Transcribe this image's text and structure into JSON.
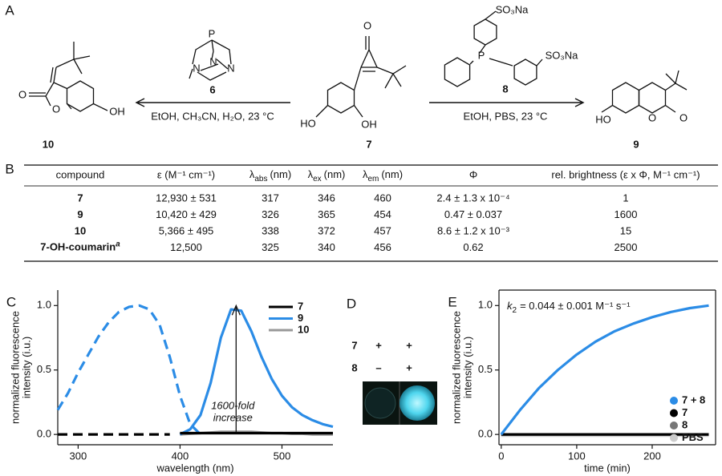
{
  "panel_a": {
    "label": "A",
    "left_reaction": {
      "reagent": "6",
      "conditions": "EtOH, CH₃CN, H₂O, 23 °C"
    },
    "right_reaction": {
      "reagent": "8",
      "conditions": "EtOH, PBS, 23 °C"
    },
    "compounds": {
      "product_left": "10",
      "start": "7",
      "product_right": "9"
    },
    "atoms": {
      "c10": [
        "O",
        "O",
        "OH"
      ],
      "c6": [
        "P",
        "N",
        "N",
        "N"
      ],
      "c7": [
        "O",
        "HO",
        "OH"
      ],
      "c8": [
        "SO₃Na",
        "P",
        "SO₃Na"
      ],
      "c9": [
        "HO",
        "O",
        "O"
      ]
    }
  },
  "panel_b": {
    "label": "B",
    "header": [
      "compound",
      "ε (M⁻¹ cm⁻¹)",
      {
        "symbol": "λ",
        "sub": "abs",
        "unit": "(nm)"
      },
      {
        "symbol": "λ",
        "sub": "ex",
        "unit": "(nm)"
      },
      {
        "symbol": "λ",
        "sub": "em",
        "unit": "(nm)"
      },
      "Φ",
      "rel. brightness (ε x Φ, M⁻¹ cm⁻¹)"
    ],
    "rows": [
      [
        "7",
        "12,930 ± 531",
        "317",
        "346",
        "460",
        "2.4 ± 1.3 x 10⁻⁴",
        "1"
      ],
      [
        "9",
        "10,420 ± 429",
        "326",
        "365",
        "454",
        "0.47 ± 0.037",
        "1600"
      ],
      [
        "10",
        "5,366 ± 495",
        "338",
        "372",
        "457",
        "8.6 ± 1.2 x 10⁻³",
        "15"
      ],
      [
        {
          "text": "7-OH-coumarin",
          "footnote": "a"
        },
        "12,500",
        "325",
        "340",
        "456",
        "0.62",
        "2500"
      ]
    ]
  },
  "panel_d": {
    "label": "D",
    "rows": [
      {
        "compound": "7",
        "signs": [
          "+",
          "+"
        ]
      },
      {
        "compound": "8",
        "signs": [
          "–",
          "+"
        ]
      }
    ]
  },
  "chart_data": [
    {
      "type": "line",
      "panel": "C",
      "xlabel": "wavelength (nm)",
      "ylabel": [
        "normalized fluorescence",
        "intensity (i.u.)"
      ],
      "x": [
        280,
        290,
        300,
        310,
        320,
        330,
        340,
        350,
        360,
        370,
        380,
        390,
        400,
        410,
        420,
        430,
        440,
        450,
        460,
        470,
        480,
        490,
        500,
        510,
        520,
        530,
        540,
        550
      ],
      "xlim": [
        280,
        550
      ],
      "xticks": [
        300,
        400,
        500
      ],
      "ylim": [
        -0.08,
        1.12
      ],
      "yticks": [
        {
          "value": 0,
          "label": "0.0"
        },
        {
          "value": 0.5,
          "label": "0.5"
        },
        {
          "value": 1,
          "label": "1.0"
        }
      ],
      "legend": "upper right",
      "box": false,
      "annotation": [
        "1600-fold",
        "increase"
      ],
      "arrow": {
        "x": 455,
        "from": 0.02,
        "to": 1.0
      },
      "series": [
        {
          "name": "7",
          "color": "#000000",
          "excitation": [
            0,
            0,
            0,
            0,
            0,
            0,
            0,
            0,
            0,
            0,
            0,
            0,
            null,
            null,
            null,
            null,
            null,
            null,
            null,
            null,
            null,
            null,
            null,
            null,
            null,
            null,
            null,
            null
          ],
          "values": [
            null,
            null,
            null,
            null,
            null,
            null,
            null,
            null,
            null,
            null,
            null,
            null,
            0.01,
            0.01,
            0.01,
            0.01,
            0.01,
            0.01,
            0.01,
            0.01,
            0.01,
            0.01,
            0.01,
            0.01,
            0.01,
            0.01,
            0.01,
            0.01
          ]
        },
        {
          "name": "9",
          "color": "#2b8ce6",
          "excitation": [
            0.19,
            0.32,
            0.48,
            0.62,
            0.76,
            0.87,
            0.95,
            0.99,
            1.0,
            0.97,
            0.85,
            0.6,
            0.3,
            0.08,
            0.0,
            null,
            null,
            null,
            null,
            null,
            null,
            null,
            null,
            null,
            null,
            null,
            null,
            null
          ],
          "values": [
            null,
            null,
            null,
            null,
            null,
            null,
            null,
            null,
            null,
            null,
            null,
            null,
            0.0,
            0.04,
            0.15,
            0.4,
            0.75,
            0.97,
            0.96,
            0.8,
            0.6,
            0.43,
            0.3,
            0.21,
            0.15,
            0.11,
            0.08,
            0.06
          ]
        },
        {
          "name": "10",
          "color": "#999999",
          "values": [
            null,
            null,
            null,
            null,
            null,
            null,
            null,
            null,
            null,
            null,
            null,
            null,
            0.0,
            0.005,
            0.01,
            0.015,
            0.02,
            0.02,
            0.02,
            0.02,
            0.015,
            0.01,
            0.01,
            0.005,
            0.005,
            0,
            0,
            0
          ]
        }
      ]
    },
    {
      "type": "line",
      "panel": "E",
      "xlabel": "time (min)",
      "ylabel": [
        "normalized fluorescence",
        "intensity (i.u.)"
      ],
      "x": [
        0,
        25,
        50,
        75,
        100,
        125,
        150,
        175,
        200,
        225,
        250,
        275
      ],
      "xlim": [
        -3,
        284
      ],
      "xticks": [
        0,
        100,
        200
      ],
      "ylim": [
        -0.08,
        1.12
      ],
      "yticks": [
        {
          "value": 0,
          "label": "0.0"
        },
        {
          "value": 0.5,
          "label": "0.5"
        },
        {
          "value": 1,
          "label": "1.0"
        }
      ],
      "legend": "lower right",
      "box": true,
      "rate": {
        "symbol": "k",
        "sub": "2",
        "text": "= 0.044 ± 0.001 M⁻¹ s⁻¹"
      },
      "series": [
        {
          "name": "7 + 8",
          "color": "#2b8ce6",
          "values": [
            0,
            0.19,
            0.36,
            0.5,
            0.62,
            0.72,
            0.8,
            0.86,
            0.91,
            0.95,
            0.98,
            1.0
          ]
        },
        {
          "name": "7",
          "color": "#000000",
          "values": [
            0,
            0,
            0,
            0,
            0,
            0,
            0,
            0,
            0,
            0,
            0,
            0
          ]
        },
        {
          "name": "8",
          "color": "#777777",
          "values": [
            0,
            0,
            0,
            0,
            0,
            0,
            0,
            0,
            0,
            0,
            0,
            0
          ]
        },
        {
          "name": "PBS",
          "color": "#cccccc",
          "values": [
            -0.01,
            -0.01,
            -0.01,
            -0.01,
            -0.01,
            -0.01,
            -0.01,
            -0.01,
            -0.01,
            -0.01,
            -0.01,
            -0.01
          ]
        }
      ]
    }
  ]
}
